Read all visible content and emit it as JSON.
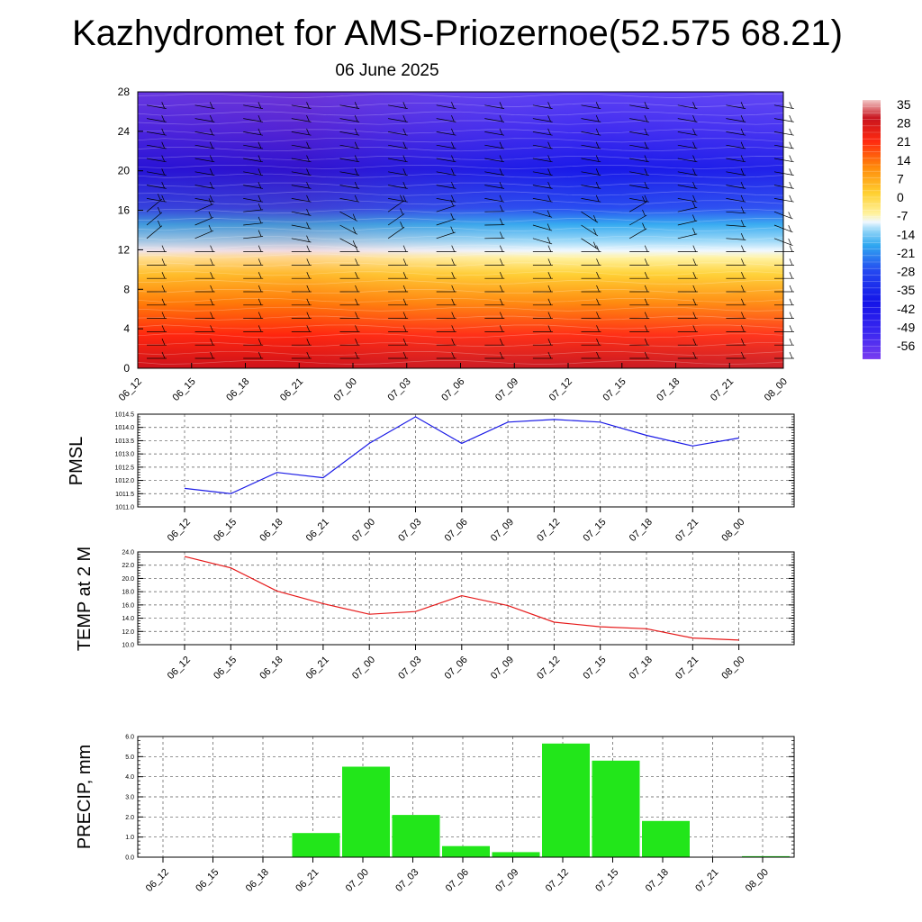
{
  "title": "Kazhydromet for AMS-Priozernoe(52.575 68.21)",
  "subtitle": "06 June 2025",
  "time_labels": [
    "06_12",
    "06_15",
    "06_18",
    "06_21",
    "07_00",
    "07_03",
    "07_06",
    "07_09",
    "07_12",
    "07_15",
    "07_18",
    "07_21",
    "08_00"
  ],
  "colors": {
    "pmsl_line": "#1a1ae6",
    "temp_line": "#e61a1a",
    "precip_bar": "#22e61a",
    "grid": "#555555"
  },
  "chart_data": [
    {
      "type": "heatmap",
      "title": "",
      "xlabel": "",
      "ylabel": "",
      "x": [
        "06_12",
        "06_15",
        "06_18",
        "06_21",
        "07_00",
        "07_03",
        "07_06",
        "07_09",
        "07_12",
        "07_15",
        "07_18",
        "07_21",
        "08_00"
      ],
      "y_ticks": [
        0,
        4,
        8,
        12,
        16,
        20,
        24,
        28
      ],
      "ylim": [
        0,
        28
      ],
      "colorbar": {
        "labels": [
          "35",
          "28",
          "21",
          "14",
          "7",
          "0",
          "-7",
          "-14",
          "-21",
          "-28",
          "-35",
          "-42",
          "-49",
          "-56"
        ],
        "range": [
          -60,
          38
        ]
      },
      "wind_barbs": "present"
    },
    {
      "type": "line",
      "ylabel": "PMSL",
      "x": [
        "06_12",
        "06_15",
        "06_18",
        "06_21",
        "07_00",
        "07_03",
        "07_06",
        "07_09",
        "07_12",
        "07_15",
        "07_18",
        "07_21",
        "08_00"
      ],
      "values": [
        1011.7,
        1011.5,
        1012.3,
        1012.1,
        1013.4,
        1014.4,
        1013.4,
        1014.2,
        1014.3,
        1014.2,
        1013.7,
        1013.3,
        1013.6
      ],
      "ylim": [
        1011.0,
        1014.5
      ],
      "yticks": [
        "1011.0",
        "1011.5",
        "1012.0",
        "1012.5",
        "1013.0",
        "1013.5",
        "1014.0",
        "1014.5"
      ],
      "grid": true
    },
    {
      "type": "line",
      "ylabel": "TEMP at 2 M",
      "x": [
        "06_12",
        "06_15",
        "06_18",
        "06_21",
        "07_00",
        "07_03",
        "07_06",
        "07_09",
        "07_12",
        "07_15",
        "07_18",
        "07_21",
        "08_00"
      ],
      "values": [
        23.3,
        21.6,
        18.1,
        16.2,
        14.6,
        15.0,
        17.4,
        15.9,
        13.4,
        12.7,
        12.4,
        11.0,
        10.7
      ],
      "ylim": [
        10.0,
        24.0
      ],
      "yticks": [
        "10.0",
        "12.0",
        "14.0",
        "16.0",
        "18.0",
        "20.0",
        "22.0",
        "24.0"
      ],
      "grid": true
    },
    {
      "type": "bar",
      "ylabel": "PRECIP, mm",
      "categories": [
        "06_12",
        "06_15",
        "06_18",
        "06_21",
        "07_00",
        "07_03",
        "07_06",
        "07_09",
        "07_12",
        "07_15",
        "07_18",
        "07_21",
        "08_00"
      ],
      "values": [
        0,
        0,
        0,
        1.2,
        4.5,
        2.1,
        0.55,
        0.25,
        5.65,
        4.8,
        1.8,
        0,
        0.05
      ],
      "ylim": [
        0,
        6.0
      ],
      "yticks": [
        "0.0",
        "1.0",
        "2.0",
        "3.0",
        "4.0",
        "5.0",
        "6.0"
      ],
      "grid": true
    }
  ]
}
